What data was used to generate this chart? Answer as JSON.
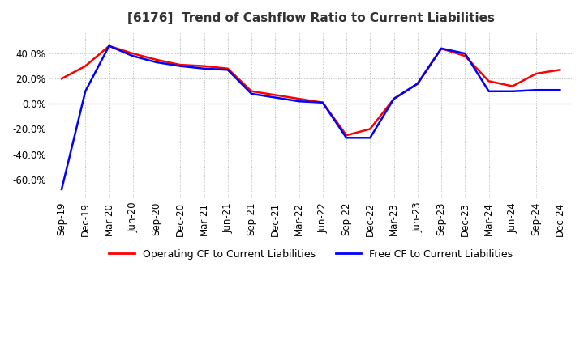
{
  "title": "[6176]  Trend of Cashflow Ratio to Current Liabilities",
  "legend_labels": [
    "Operating CF to Current Liabilities",
    "Free CF to Current Liabilities"
  ],
  "legend_colors": [
    "#ff0000",
    "#0000ff"
  ],
  "x_labels": [
    "Sep-19",
    "Dec-19",
    "Mar-20",
    "Jun-20",
    "Sep-20",
    "Dec-20",
    "Mar-21",
    "Jun-21",
    "Sep-21",
    "Dec-21",
    "Mar-22",
    "Jun-22",
    "Sep-22",
    "Dec-22",
    "Mar-23",
    "Jun-23",
    "Sep-23",
    "Dec-23",
    "Mar-24",
    "Jun-24",
    "Sep-24",
    "Dec-24"
  ],
  "operating_cf": [
    0.2,
    0.3,
    0.46,
    0.4,
    0.35,
    0.31,
    0.3,
    0.28,
    0.1,
    0.07,
    0.04,
    0.01,
    -0.25,
    -0.2,
    0.04,
    0.16,
    0.44,
    0.38,
    0.18,
    0.14,
    0.24,
    0.27
  ],
  "free_cf": [
    -0.68,
    0.1,
    0.46,
    0.38,
    0.33,
    0.3,
    0.28,
    0.27,
    0.08,
    0.05,
    0.02,
    0.01,
    -0.27,
    -0.27,
    0.04,
    0.16,
    0.44,
    0.4,
    0.1,
    0.1,
    0.11,
    0.11
  ],
  "ylim": [
    -0.75,
    0.58
  ],
  "yticks": [
    -0.6,
    -0.4,
    -0.2,
    0.0,
    0.2,
    0.4
  ],
  "background_color": "#ffffff",
  "grid_color": "#aaaaaa",
  "zero_line_color": "#888888",
  "title_fontsize": 11,
  "tick_fontsize": 8.5
}
